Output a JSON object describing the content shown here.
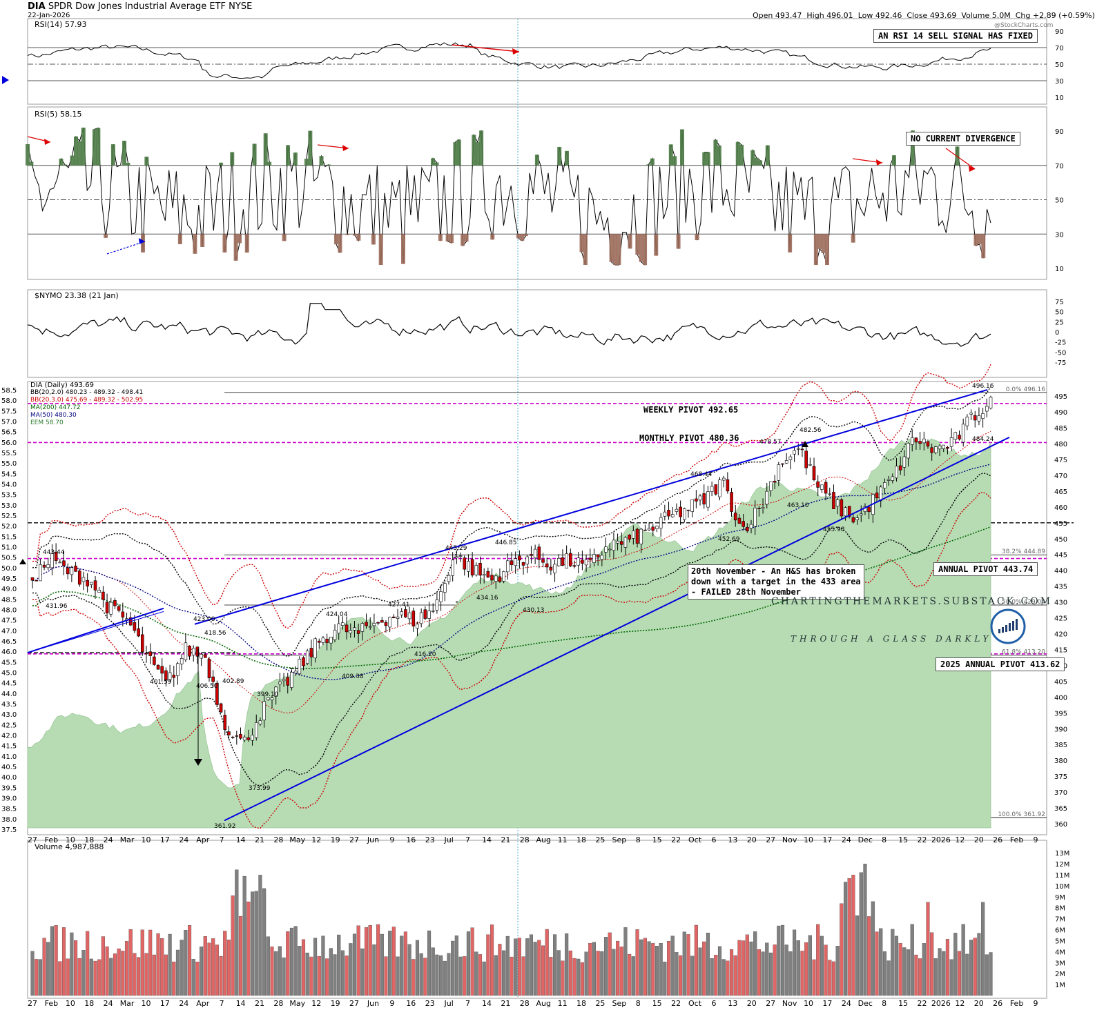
{
  "header": {
    "symbol": "DIA",
    "name": "SPDR Dow Jones Industrial Average ETF",
    "exchange": "NYSE",
    "date": "22-Jan-2026",
    "quote_open_label": "Open",
    "quote_open": "493.47",
    "quote_high_label": "High",
    "quote_high": "496.01",
    "quote_low_label": "Low",
    "quote_low": "492.46",
    "quote_close_label": "Close",
    "quote_close": "493.69",
    "quote_volume_label": "Volume",
    "quote_volume": "5.0M",
    "quote_chg_label": "Chg",
    "quote_chg": "+2.89 (+0.59%)",
    "watermark": "@StockCharts.com"
  },
  "panes": {
    "rsi14": {
      "label": "RSI(14) 57.93",
      "ticks": [
        "90",
        "70",
        "50",
        "30",
        "10"
      ],
      "annotation": "AN RSI 14 SELL SIGNAL HAS FIXED"
    },
    "rsi5": {
      "label": "RSI(5) 58.15",
      "ticks": [
        "90",
        "70",
        "50",
        "30",
        "10"
      ],
      "annotation": "NO CURRENT DIVERGENCE"
    },
    "nymo": {
      "label": "$NYMO 23.38 (21 Jan)",
      "ticks": [
        "75",
        "50",
        "25",
        "0",
        "-25",
        "-50",
        "-75"
      ]
    },
    "volume": {
      "label": "Volume 4,987,888",
      "ticks": [
        "13M",
        "12M",
        "11M",
        "10M",
        "9M",
        "8M",
        "7M",
        "6M",
        "5M",
        "4M",
        "3M",
        "2M",
        "1M"
      ]
    }
  },
  "legend": [
    {
      "text": "DIA (Daily) 493.69",
      "color": "#000000"
    },
    {
      "text": "BB(20,2.0) 480.23 - 489.32 - 498.41",
      "color": "#000000"
    },
    {
      "text": "BB(20,3.0) 475.69 - 489.32 - 502.95",
      "color": "#cc0000"
    },
    {
      "text": "MA(200) 447.72",
      "color": "#006600"
    },
    {
      "text": "MA(50) 480.30",
      "color": "#000080"
    },
    {
      "text": "EEM 58.70",
      "color": "#2e7d32"
    }
  ],
  "price_axis_right": [
    "495",
    "490",
    "485",
    "480",
    "475",
    "470",
    "465",
    "460",
    "455",
    "450",
    "445",
    "440",
    "435",
    "430",
    "425",
    "420",
    "415",
    "410",
    "405",
    "400",
    "395",
    "390",
    "385",
    "380",
    "375",
    "370",
    "365",
    "360"
  ],
  "price_axis_left": [
    "58.5",
    "58.0",
    "57.5",
    "57.0",
    "56.5",
    "56.0",
    "55.5",
    "55.0",
    "54.5",
    "54.0",
    "53.5",
    "53.0",
    "52.5",
    "52.0",
    "51.5",
    "51.0",
    "50.5",
    "50.0",
    "49.5",
    "49.0",
    "48.5",
    "48.0",
    "47.5",
    "47.0",
    "46.5",
    "46.0",
    "45.5",
    "45.0",
    "44.5",
    "44.0",
    "43.5",
    "43.0",
    "42.5",
    "42.0",
    "41.5",
    "41.0",
    "40.5",
    "40.0",
    "39.5",
    "39.0",
    "38.5",
    "38.0",
    "37.5"
  ],
  "fib_labels": [
    "0.0% 496.16",
    "38.2% 444.89",
    "50.0% 429.04",
    "61.8% 413.20",
    "100.0% 361.92"
  ],
  "x_axis": [
    "27",
    "Feb",
    "10",
    "18",
    "24",
    "Mar",
    "10",
    "17",
    "24",
    "Apr",
    "7",
    "14",
    "21",
    "28",
    "May",
    "12",
    "19",
    "27",
    "Jun",
    "9",
    "16",
    "23",
    "Jul",
    "7",
    "14",
    "21",
    "28",
    "Aug",
    "11",
    "18",
    "25",
    "Sep",
    "8",
    "15",
    "22",
    "Oct",
    "6",
    "13",
    "20",
    "27",
    "Nov",
    "10",
    "17",
    "24",
    "Dec",
    "8",
    "15",
    "22",
    "2026",
    "12",
    "20",
    "26",
    "Feb",
    "9"
  ],
  "pivots": {
    "weekly": "WEEKLY PIVOT 492.65",
    "monthly": "MONTHLY PIVOT 480.36",
    "annual": "ANNUAL PIVOT 443.74",
    "annual2025": "2025 ANNUAL PIVOT 413.62"
  },
  "hs_note": "20th November - An H&S has broken\ndown with a target in the 433 area\n- FAILED 28th November",
  "brand": {
    "line1": "CHARTINGTHEMARKETS.SUBSTACK.COM",
    "line2": "THROUGH A GLASS DARKLY"
  },
  "colors": {
    "up": "#ffffff",
    "down": "#cc0000",
    "vol_up": "#808080",
    "vol_down": "#e06666",
    "trend": "#0000dd",
    "pivot": "#cc00cc",
    "eem_fill": "#b7dcb4",
    "rsi_ob": "#4b7a44",
    "rsi_os": "#9c6b5a"
  },
  "chart_data": {
    "type": "line",
    "title": "DIA SPDR Dow Jones Industrial Average ETF NYSE",
    "xlabel": "",
    "ylabel": "",
    "ylim": [
      358,
      499
    ],
    "x": [
      "27",
      "Feb",
      "10",
      "18",
      "24",
      "Mar",
      "10",
      "17",
      "24",
      "Apr",
      "7",
      "14",
      "21",
      "28",
      "May",
      "12",
      "19",
      "27",
      "Jun",
      "9",
      "16",
      "23",
      "Jul",
      "7",
      "14",
      "21",
      "28",
      "Aug",
      "11",
      "18",
      "25",
      "Sep",
      "8",
      "15",
      "22",
      "Oct",
      "6",
      "13",
      "20",
      "27",
      "Nov",
      "10",
      "17",
      "24",
      "Dec",
      "8",
      "15",
      "22",
      "2026",
      "12",
      "20"
    ],
    "series": [
      {
        "name": "DIA (Daily) 493.69",
        "values": [
          438,
          443.44,
          439,
          437,
          428,
          424,
          412,
          404,
          415,
          413,
          392,
          385,
          396,
          403,
          410,
          418,
          422,
          420,
          424,
          426,
          424,
          428,
          445,
          440,
          437,
          442,
          445,
          442,
          443,
          441,
          448,
          449,
          452,
          456,
          459,
          462,
          468.44,
          452.69,
          460,
          474,
          478.57,
          466,
          460,
          455.98,
          463,
          470,
          482,
          478,
          480,
          488,
          493.69
        ]
      }
    ],
    "price_labels": [
      "443.44",
      "431.96",
      "423.00",
      "418.56",
      "406.50",
      "401.59",
      "402.89",
      "399.10",
      "373.99",
      "361.92",
      "424.04",
      "409.38",
      "427.41",
      "416.20",
      "445.29",
      "446.85",
      "434.16",
      "430.13",
      "468.44",
      "452.69",
      "478.57",
      "482.56",
      "463.10",
      "455.98",
      "496.16",
      "484.24"
    ]
  }
}
